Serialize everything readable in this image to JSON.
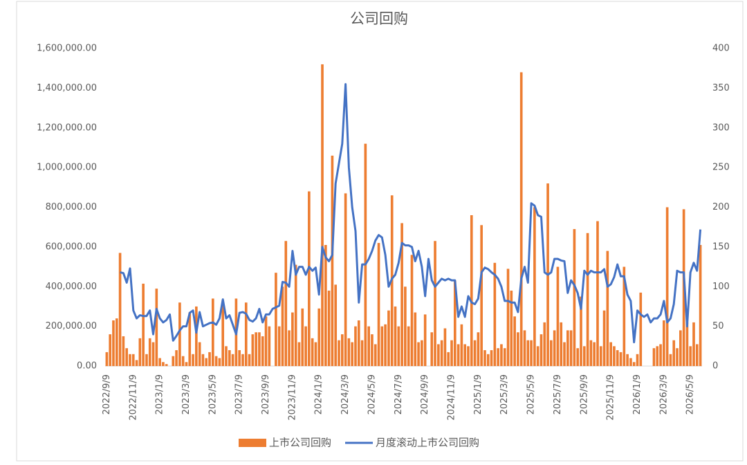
{
  "chart_data": {
    "type": "bar_line",
    "title": "公司回购",
    "categories": [
      "2022/9/9",
      null,
      null,
      null,
      null,
      null,
      null,
      null,
      "2022/11/9",
      null,
      null,
      null,
      null,
      null,
      null,
      null,
      "2023/1/9",
      null,
      null,
      null,
      null,
      null,
      null,
      null,
      "2023/3/9",
      null,
      null,
      null,
      null,
      null,
      null,
      null,
      "2023/5/9",
      null,
      null,
      null,
      null,
      null,
      null,
      null,
      "2023/7/9",
      null,
      null,
      null,
      null,
      null,
      null,
      null,
      "2023/9/9",
      null,
      null,
      null,
      null,
      null,
      null,
      null,
      "2023/11/9",
      null,
      null,
      null,
      null,
      null,
      null,
      null,
      "2024/1/9",
      null,
      null,
      null,
      null,
      null,
      null,
      null,
      "2024/3/9",
      null,
      null,
      null,
      null,
      null,
      null,
      null,
      "2024/5/9",
      null,
      null,
      null,
      null,
      null,
      null,
      null,
      "2024/7/9",
      null,
      null,
      null,
      null,
      null,
      null,
      null,
      "2024/9/9",
      null,
      null,
      null,
      null,
      null,
      null,
      null,
      "2024/11/9",
      null,
      null,
      null,
      null,
      null,
      null,
      null,
      "2025/1/9",
      null,
      null,
      null,
      null,
      null,
      null,
      null,
      "2025/3/9",
      null,
      null,
      null,
      null,
      null,
      null,
      null,
      "2025/5/9",
      null,
      null,
      null,
      null,
      null,
      null,
      null,
      "2025/7/9",
      null,
      null,
      null,
      null,
      null,
      null,
      null,
      "2025/9/9",
      null,
      null,
      null,
      null,
      null,
      null,
      null,
      "2025/11/9",
      null,
      null,
      null,
      null,
      null,
      null,
      null,
      "2026/1/9",
      null,
      null,
      null,
      null,
      null,
      null,
      null,
      "2026/3/9",
      null,
      null,
      null,
      null,
      null,
      null,
      null,
      "2026/5/9",
      null,
      null,
      null
    ],
    "series": [
      {
        "name": "上市公司回购",
        "color": "#ed7d31",
        "kind": "bar",
        "values": [
          70000,
          160000,
          230000,
          240000,
          570000,
          150000,
          90000,
          60000,
          60000,
          30000,
          140000,
          415000,
          60000,
          140000,
          120000,
          390000,
          40000,
          20000,
          10000,
          0,
          50000,
          80000,
          320000,
          50000,
          20000,
          270000,
          60000,
          300000,
          120000,
          60000,
          40000,
          70000,
          340000,
          50000,
          40000,
          330000,
          100000,
          80000,
          60000,
          340000,
          80000,
          60000,
          320000,
          60000,
          160000,
          170000,
          170000,
          150000,
          250000,
          200000,
          0,
          470000,
          200000,
          400000,
          630000,
          180000,
          270000,
          510000,
          120000,
          290000,
          200000,
          880000,
          140000,
          120000,
          290000,
          1520000,
          610000,
          380000,
          1060000,
          410000,
          130000,
          160000,
          870000,
          140000,
          120000,
          200000,
          230000,
          130000,
          1120000,
          200000,
          160000,
          110000,
          620000,
          200000,
          210000,
          280000,
          860000,
          300000,
          200000,
          720000,
          400000,
          200000,
          560000,
          270000,
          120000,
          130000,
          260000,
          0,
          170000,
          630000,
          110000,
          130000,
          190000,
          70000,
          130000,
          430000,
          110000,
          210000,
          110000,
          100000,
          760000,
          130000,
          170000,
          710000,
          80000,
          60000,
          80000,
          520000,
          90000,
          110000,
          90000,
          490000,
          380000,
          250000,
          170000,
          1480000,
          180000,
          130000,
          130000,
          800000,
          100000,
          160000,
          220000,
          920000,
          130000,
          180000,
          500000,
          220000,
          120000,
          180000,
          180000,
          690000,
          90000,
          350000,
          100000,
          670000,
          130000,
          120000,
          730000,
          100000,
          280000,
          580000,
          120000,
          100000,
          80000,
          70000,
          500000,
          60000,
          40000,
          20000,
          60000,
          370000,
          0,
          0,
          0,
          90000,
          100000,
          110000,
          230000,
          800000,
          60000,
          130000,
          90000,
          180000,
          790000,
          220000,
          100000,
          220000,
          110000,
          610000
        ]
      },
      {
        "name": "月度滚动上市公司回购",
        "color": "#4472c4",
        "kind": "line",
        "axis": "y2",
        "values": [
          null,
          null,
          null,
          null,
          118,
          117,
          105,
          123,
          70,
          60,
          64,
          63,
          63,
          70,
          40,
          72,
          60,
          55,
          58,
          65,
          32,
          38,
          45,
          50,
          50,
          67,
          70,
          42,
          68,
          50,
          52,
          54,
          55,
          52,
          60,
          84,
          60,
          64,
          52,
          40,
          67,
          68,
          66,
          58,
          56,
          60,
          72,
          55,
          65,
          65,
          72,
          74,
          76,
          106,
          105,
          100,
          145,
          115,
          125,
          125,
          115,
          125,
          120,
          124,
          90,
          150,
          137,
          132,
          140,
          230,
          255,
          280,
          355,
          250,
          200,
          170,
          80,
          128,
          128,
          135,
          145,
          158,
          165,
          162,
          140,
          100,
          110,
          115,
          130,
          155,
          152,
          152,
          150,
          132,
          145,
          125,
          88,
          135,
          108,
          100,
          105,
          110,
          108,
          110,
          108,
          108,
          62,
          75,
          62,
          88,
          80,
          78,
          85,
          118,
          124,
          122,
          118,
          115,
          110,
          100,
          82,
          82,
          80,
          80,
          68,
          110,
          125,
          105,
          205,
          202,
          190,
          188,
          118,
          115,
          118,
          135,
          135,
          133,
          132,
          92,
          108,
          102,
          92,
          72,
          120,
          115,
          120,
          118,
          118,
          118,
          122,
          100,
          103,
          112,
          128,
          113,
          113,
          90,
          82,
          30,
          70,
          65,
          62,
          65,
          55,
          60,
          60,
          65,
          82,
          55,
          60,
          78,
          120,
          118,
          118,
          50,
          118,
          130,
          120,
          172
        ]
      }
    ],
    "ylim": [
      0,
      1600000
    ],
    "yticks": [
      {
        "value": 0,
        "label": "0.00"
      },
      {
        "value": 200000,
        "label": "200,000.00"
      },
      {
        "value": 400000,
        "label": "400,000.00"
      },
      {
        "value": 600000,
        "label": "600,000.00"
      },
      {
        "value": 800000,
        "label": "800,000.00"
      },
      {
        "value": 1000000,
        "label": "1,000,000.00"
      },
      {
        "value": 1200000,
        "label": "1,200,000.00"
      },
      {
        "value": 1400000,
        "label": "1,400,000.00"
      },
      {
        "value": 1600000,
        "label": "1,600,000.00"
      }
    ],
    "y2lim": [
      0,
      400
    ],
    "y2ticks": [
      0,
      50,
      100,
      150,
      200,
      250,
      300,
      350,
      400
    ],
    "grid": false,
    "legend": "bottom"
  }
}
